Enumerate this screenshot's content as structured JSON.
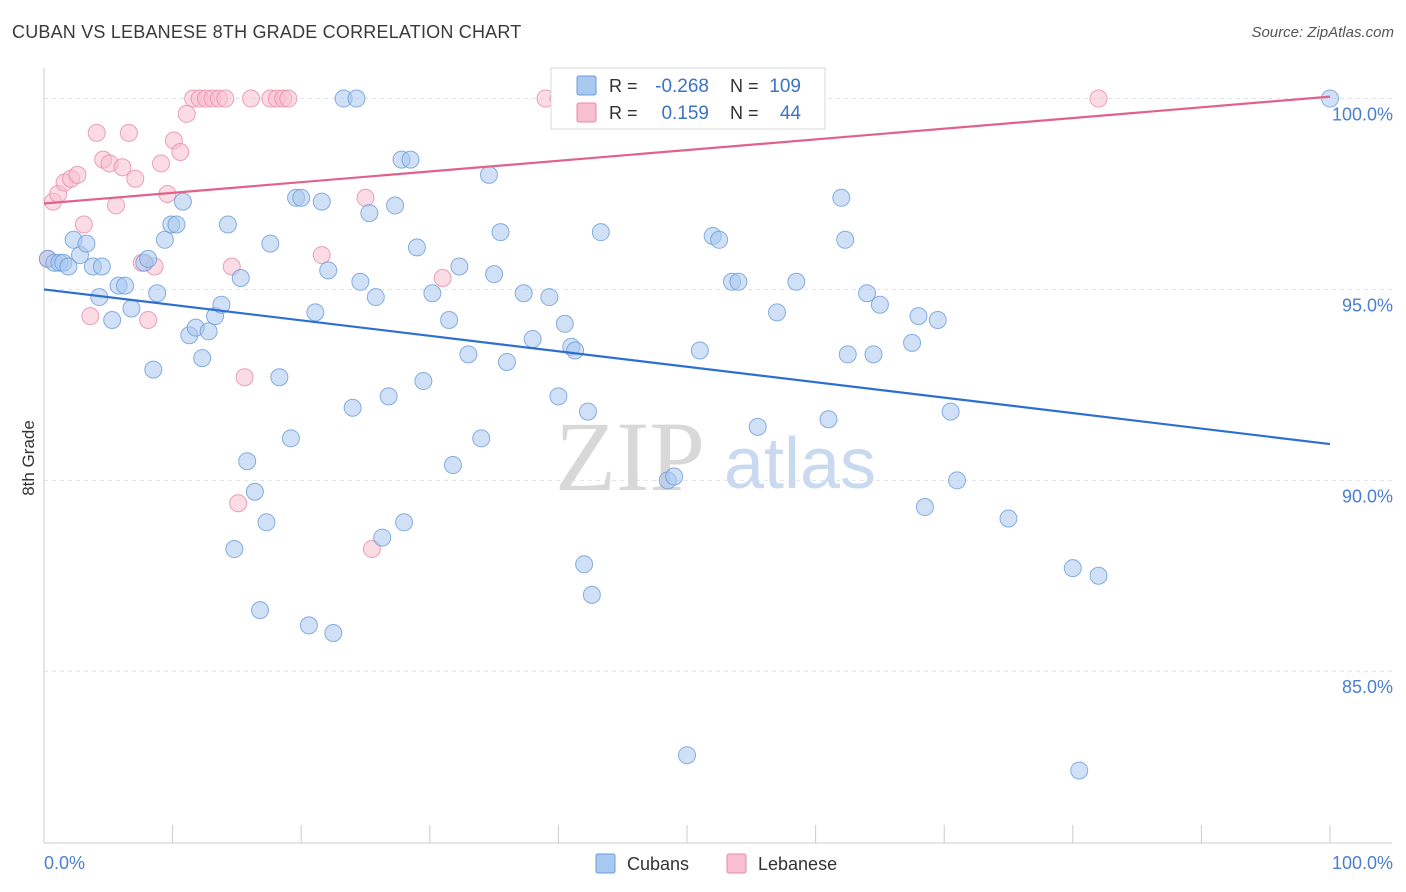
{
  "header": {
    "title": "CUBAN VS LEBANESE 8TH GRADE CORRELATION CHART",
    "source": "Source: ZipAtlas.com"
  },
  "legend_box": {
    "r_label": "R =",
    "n_label": "N =",
    "rows": [
      {
        "series": "Cubans",
        "r": "-0.268",
        "n": "109"
      },
      {
        "series": "Lebanese",
        "r": "0.159",
        "n": "44"
      }
    ]
  },
  "watermark": {
    "zip": "ZIP",
    "atlas": "atlas"
  },
  "colors": {
    "cubans_fill": "#a9c8f0",
    "cubans_stroke": "#6a9bd8",
    "cubans_line": "#2c6fcf",
    "lebanese_fill": "#f7bfd0",
    "lebanese_stroke": "#e98aa8",
    "lebanese_line": "#e0628b",
    "tick_label": "#4a7fd0",
    "grid": "#dde3ea",
    "axis": "#c8ccd2"
  },
  "chart_data": {
    "type": "scatter",
    "title": "CUBAN VS LEBANESE 8TH GRADE CORRELATION CHART",
    "xlabel": "",
    "ylabel": "8th Grade",
    "xlim": [
      0,
      100
    ],
    "ylim": [
      80.5,
      100.8
    ],
    "x_tick_labels": [
      "0.0%",
      "100.0%"
    ],
    "y_ticks": [
      85,
      90,
      95,
      100
    ],
    "y_tick_labels": [
      "85.0%",
      "90.0%",
      "95.0%",
      "100.0%"
    ],
    "grid": true,
    "legend_position": "bottom-center",
    "series": [
      {
        "name": "Cubans",
        "trendline": {
          "x": [
            0,
            100
          ],
          "y": [
            95.0,
            90.95
          ]
        },
        "points": [
          [
            0.3,
            95.8
          ],
          [
            0.8,
            95.7
          ],
          [
            1.2,
            95.7
          ],
          [
            1.5,
            95.7
          ],
          [
            1.9,
            95.6
          ],
          [
            2.3,
            96.3
          ],
          [
            2.8,
            95.9
          ],
          [
            3.3,
            96.2
          ],
          [
            3.8,
            95.6
          ],
          [
            4.3,
            94.8
          ],
          [
            4.5,
            95.6
          ],
          [
            5.3,
            94.2
          ],
          [
            5.8,
            95.1
          ],
          [
            6.3,
            95.1
          ],
          [
            6.8,
            94.5
          ],
          [
            7.8,
            95.7
          ],
          [
            8.1,
            95.8
          ],
          [
            8.5,
            92.9
          ],
          [
            8.8,
            94.9
          ],
          [
            9.4,
            96.3
          ],
          [
            9.9,
            96.7
          ],
          [
            10.3,
            96.7
          ],
          [
            10.8,
            97.3
          ],
          [
            11.3,
            93.8
          ],
          [
            11.8,
            94.0
          ],
          [
            12.3,
            93.2
          ],
          [
            12.8,
            93.9
          ],
          [
            13.3,
            94.3
          ],
          [
            13.8,
            94.6
          ],
          [
            14.3,
            96.7
          ],
          [
            14.8,
            88.2
          ],
          [
            15.3,
            95.3
          ],
          [
            15.8,
            90.5
          ],
          [
            16.4,
            89.7
          ],
          [
            16.8,
            86.6
          ],
          [
            17.3,
            88.9
          ],
          [
            17.6,
            96.2
          ],
          [
            18.3,
            92.7
          ],
          [
            19.2,
            91.1
          ],
          [
            19.6,
            97.4
          ],
          [
            20.0,
            97.4
          ],
          [
            20.6,
            86.2
          ],
          [
            21.1,
            94.4
          ],
          [
            21.6,
            97.3
          ],
          [
            22.1,
            95.5
          ],
          [
            22.5,
            86.0
          ],
          [
            23.3,
            100.0
          ],
          [
            24.0,
            91.9
          ],
          [
            24.3,
            100.0
          ],
          [
            24.6,
            95.2
          ],
          [
            25.3,
            97.0
          ],
          [
            25.8,
            94.8
          ],
          [
            26.3,
            88.5
          ],
          [
            26.8,
            92.2
          ],
          [
            27.3,
            97.2
          ],
          [
            27.8,
            98.4
          ],
          [
            28.0,
            88.9
          ],
          [
            28.5,
            98.4
          ],
          [
            29.0,
            96.1
          ],
          [
            29.5,
            92.6
          ],
          [
            30.2,
            94.9
          ],
          [
            31.5,
            94.2
          ],
          [
            31.8,
            90.4
          ],
          [
            32.3,
            95.6
          ],
          [
            33.0,
            93.3
          ],
          [
            34.0,
            91.1
          ],
          [
            34.6,
            98.0
          ],
          [
            35.0,
            95.4
          ],
          [
            35.5,
            96.5
          ],
          [
            36.0,
            93.1
          ],
          [
            37.3,
            94.9
          ],
          [
            38.0,
            93.7
          ],
          [
            39.3,
            94.8
          ],
          [
            40.0,
            92.2
          ],
          [
            40.5,
            94.1
          ],
          [
            41.0,
            93.5
          ],
          [
            41.3,
            93.4
          ],
          [
            42.0,
            87.8
          ],
          [
            42.3,
            91.8
          ],
          [
            42.6,
            87.0
          ],
          [
            43.3,
            96.5
          ],
          [
            48.5,
            90.0
          ],
          [
            49.0,
            90.1
          ],
          [
            50.0,
            82.8
          ],
          [
            51.0,
            93.4
          ],
          [
            52.0,
            96.4
          ],
          [
            52.5,
            96.3
          ],
          [
            53.5,
            95.2
          ],
          [
            54.0,
            95.2
          ],
          [
            55.5,
            91.4
          ],
          [
            57.0,
            94.4
          ],
          [
            58.5,
            95.2
          ],
          [
            61.0,
            91.6
          ],
          [
            62.0,
            97.4
          ],
          [
            62.3,
            96.3
          ],
          [
            62.5,
            93.3
          ],
          [
            64.0,
            94.9
          ],
          [
            64.5,
            93.3
          ],
          [
            65.0,
            94.6
          ],
          [
            67.5,
            93.6
          ],
          [
            68.0,
            94.3
          ],
          [
            68.5,
            89.3
          ],
          [
            69.5,
            94.2
          ],
          [
            70.5,
            91.8
          ],
          [
            71.0,
            90.0
          ],
          [
            75.0,
            89.0
          ],
          [
            80.0,
            87.7
          ],
          [
            80.5,
            82.4
          ],
          [
            82.0,
            87.5
          ],
          [
            100.0,
            100.0
          ]
        ]
      },
      {
        "name": "Lebanese",
        "trendline": {
          "x": [
            0,
            100
          ],
          "y": [
            97.25,
            100.05
          ]
        },
        "points": [
          [
            0.3,
            95.8
          ],
          [
            0.7,
            97.3
          ],
          [
            1.1,
            97.5
          ],
          [
            1.6,
            97.8
          ],
          [
            2.1,
            97.9
          ],
          [
            2.6,
            98.0
          ],
          [
            3.1,
            96.7
          ],
          [
            3.6,
            94.3
          ],
          [
            4.1,
            99.1
          ],
          [
            4.6,
            98.4
          ],
          [
            5.1,
            98.3
          ],
          [
            5.6,
            97.2
          ],
          [
            6.1,
            98.2
          ],
          [
            6.6,
            99.1
          ],
          [
            7.1,
            97.9
          ],
          [
            7.6,
            95.7
          ],
          [
            8.1,
            94.2
          ],
          [
            8.6,
            95.6
          ],
          [
            9.1,
            98.3
          ],
          [
            9.6,
            97.5
          ],
          [
            10.1,
            98.9
          ],
          [
            10.6,
            98.6
          ],
          [
            11.1,
            99.6
          ],
          [
            11.6,
            100.0
          ],
          [
            12.1,
            100.0
          ],
          [
            12.6,
            100.0
          ],
          [
            13.1,
            100.0
          ],
          [
            13.6,
            100.0
          ],
          [
            14.1,
            100.0
          ],
          [
            14.6,
            95.6
          ],
          [
            15.1,
            89.4
          ],
          [
            15.6,
            92.7
          ],
          [
            16.1,
            100.0
          ],
          [
            17.6,
            100.0
          ],
          [
            18.1,
            100.0
          ],
          [
            18.6,
            100.0
          ],
          [
            19.0,
            100.0
          ],
          [
            21.6,
            95.9
          ],
          [
            25.0,
            97.4
          ],
          [
            25.5,
            88.2
          ],
          [
            31.0,
            95.3
          ],
          [
            39.0,
            100.0
          ],
          [
            40.0,
            100.0
          ],
          [
            82.0,
            100.0
          ]
        ]
      }
    ]
  }
}
